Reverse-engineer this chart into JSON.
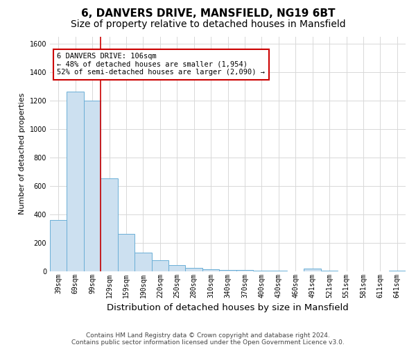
{
  "title": "6, DANVERS DRIVE, MANSFIELD, NG19 6BT",
  "subtitle": "Size of property relative to detached houses in Mansfield",
  "xlabel": "Distribution of detached houses by size in Mansfield",
  "ylabel": "Number of detached properties",
  "categories": [
    "39sqm",
    "69sqm",
    "99sqm",
    "129sqm",
    "159sqm",
    "190sqm",
    "220sqm",
    "250sqm",
    "280sqm",
    "310sqm",
    "340sqm",
    "370sqm",
    "400sqm",
    "430sqm",
    "460sqm",
    "491sqm",
    "521sqm",
    "551sqm",
    "581sqm",
    "611sqm",
    "641sqm"
  ],
  "values": [
    360,
    1260,
    1200,
    650,
    260,
    130,
    75,
    40,
    25,
    15,
    10,
    8,
    5,
    2,
    0,
    20,
    2,
    0,
    0,
    0,
    2
  ],
  "bar_color": "#cce0f0",
  "bar_edgecolor": "#6aaed6",
  "grid_color": "#d8d8d8",
  "background_color": "#ffffff",
  "annotation_line1": "6 DANVERS DRIVE: 106sqm",
  "annotation_line2": "← 48% of detached houses are smaller (1,954)",
  "annotation_line3": "52% of semi-detached houses are larger (2,090) →",
  "annotation_box_color": "#ffffff",
  "annotation_border_color": "#cc0000",
  "redline_color": "#cc0000",
  "redline_x": 2.5,
  "ylim": [
    0,
    1650
  ],
  "yticks": [
    0,
    200,
    400,
    600,
    800,
    1000,
    1200,
    1400,
    1600
  ],
  "footer_line1": "Contains HM Land Registry data © Crown copyright and database right 2024.",
  "footer_line2": "Contains public sector information licensed under the Open Government Licence v3.0.",
  "title_fontsize": 11,
  "subtitle_fontsize": 10,
  "xlabel_fontsize": 9.5,
  "ylabel_fontsize": 8,
  "tick_fontsize": 7,
  "annotation_fontsize": 7.5,
  "footer_fontsize": 6.5
}
